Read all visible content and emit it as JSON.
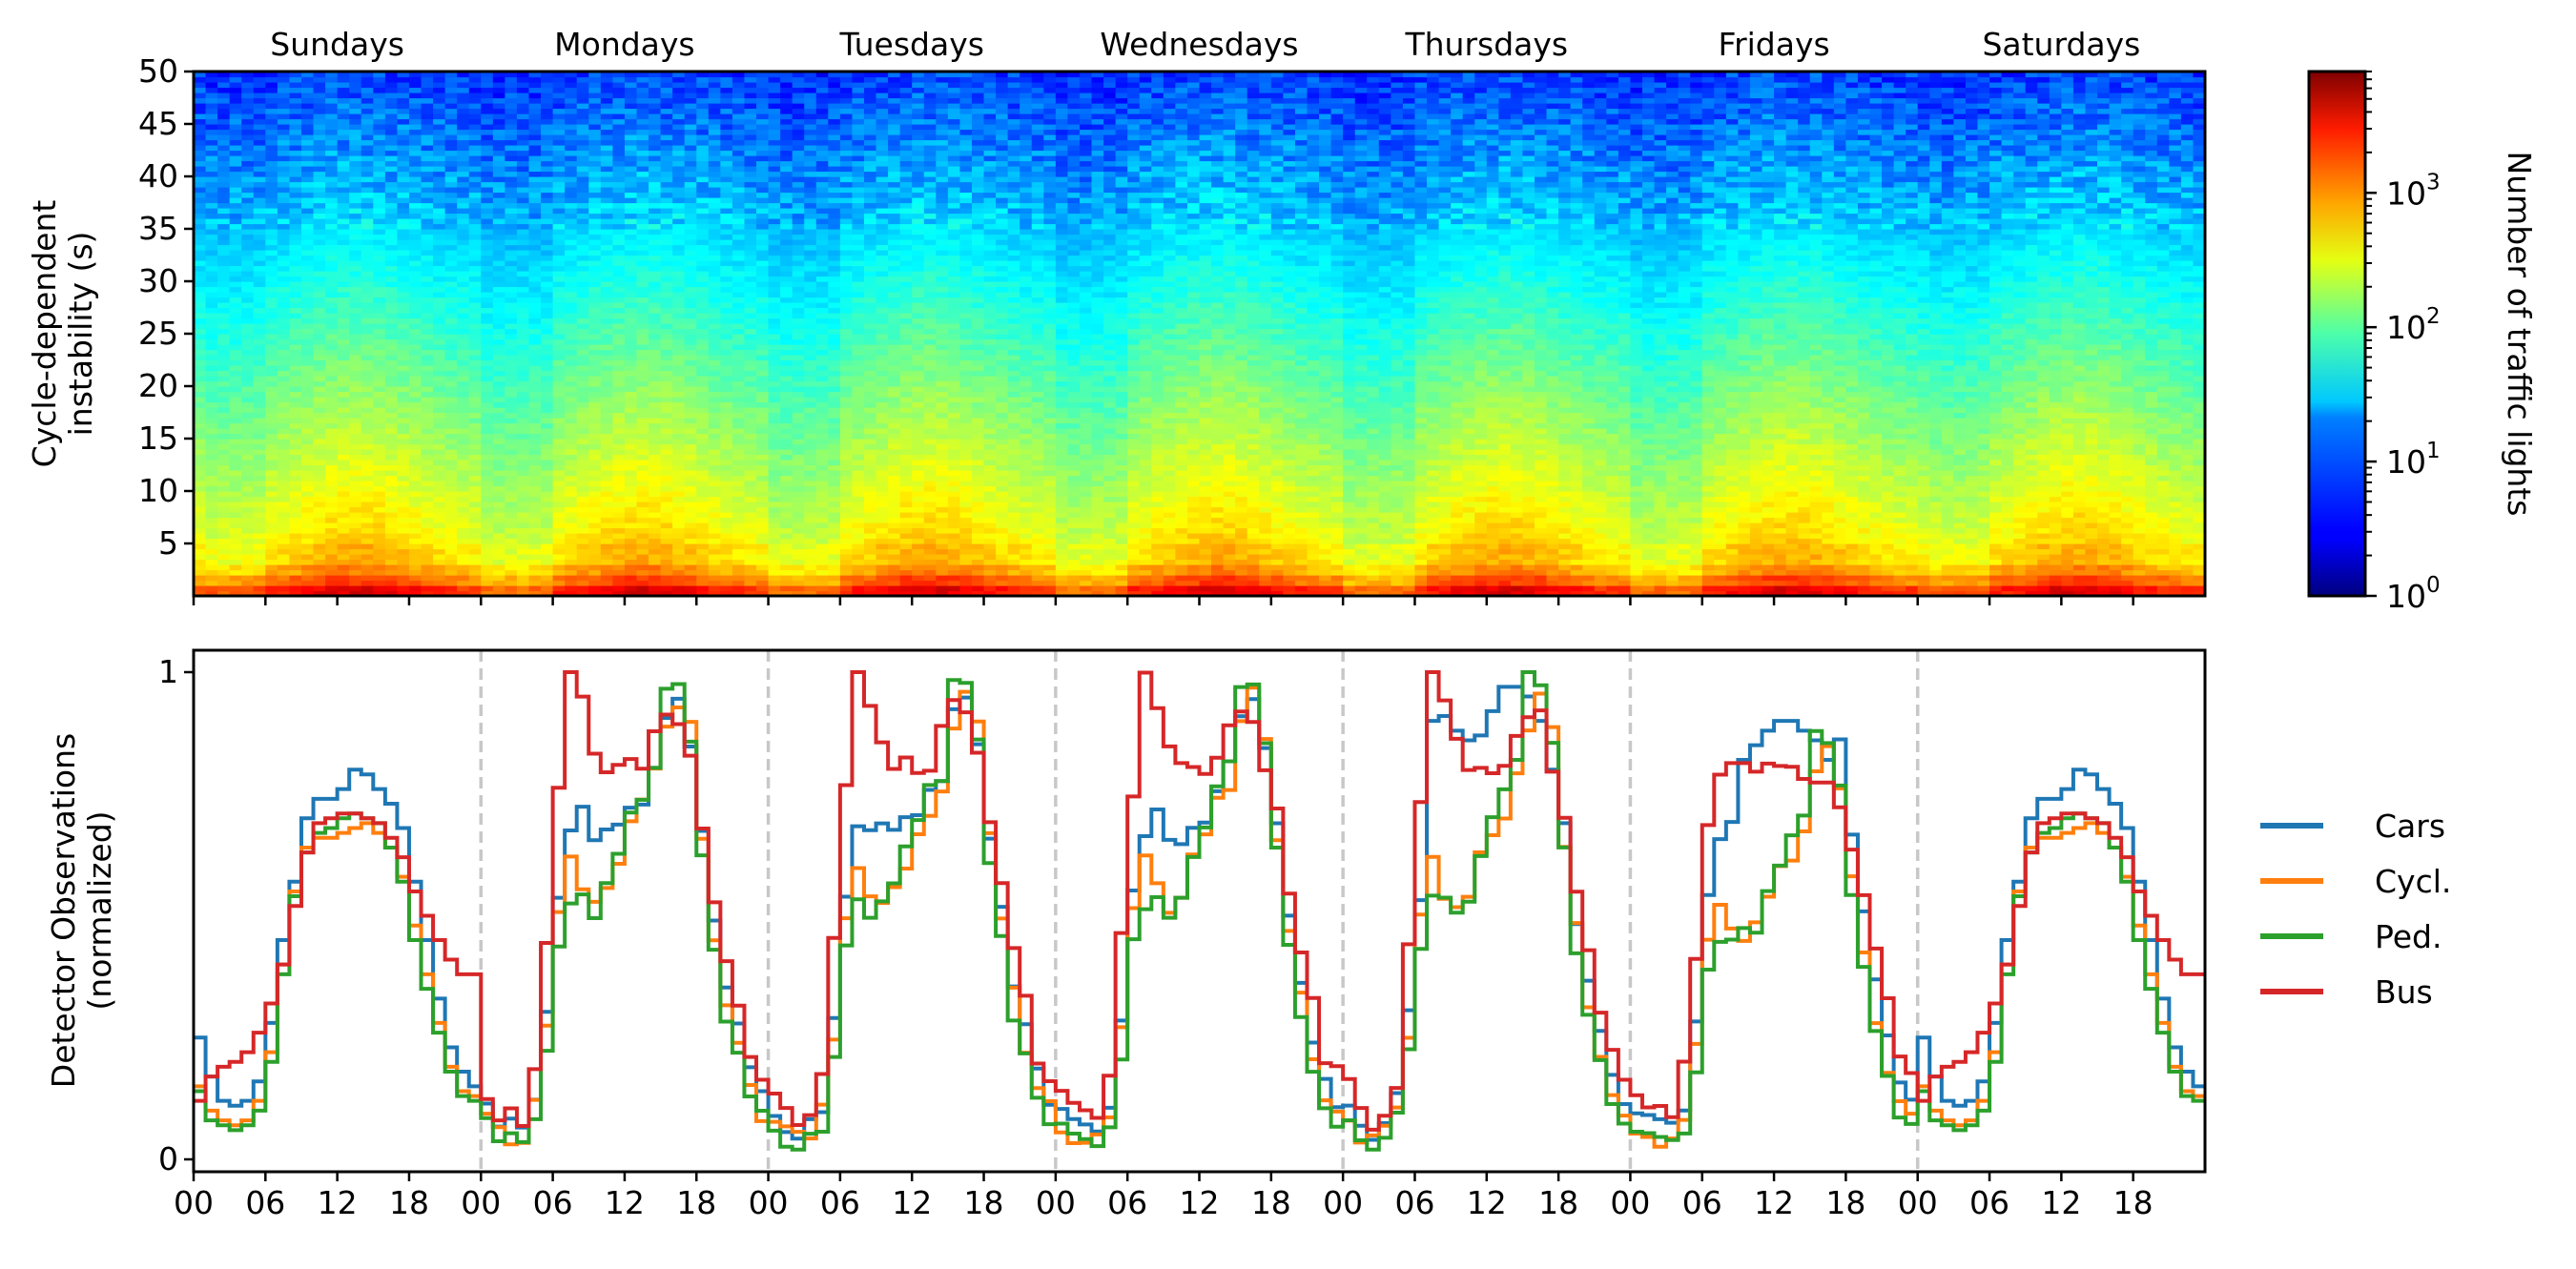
{
  "chart_data": [
    {
      "type": "heatmap",
      "ylabel_lines": [
        "Cycle-dependent",
        "instability (s)"
      ],
      "day_labels": [
        "Sundays",
        "Mondays",
        "Tuesdays",
        "Wednesdays",
        "Thursdays",
        "Fridays",
        "Saturdays"
      ],
      "y_ticks": [
        "5",
        "10",
        "15",
        "20",
        "25",
        "30",
        "35",
        "40",
        "45",
        "50"
      ],
      "ylim": [
        0,
        50
      ],
      "hours_per_day": 24,
      "days": 7,
      "colormap": "jet",
      "colorbar": {
        "label": "Number of traffic lights",
        "scale": "log",
        "ticks": [
          "10",
          "10",
          "10",
          "10"
        ],
        "tick_exponents": [
          "0",
          "1",
          "2",
          "3"
        ],
        "range": [
          1,
          8000
        ]
      },
      "notes": "Counts are highest at low instability (<5 s, ~1000-8000), decreasing towards 50 s (~1-10); dips in counts around 00-06 each night."
    },
    {
      "type": "line",
      "ylabel_lines": [
        "Detector Observations",
        "(normalized)"
      ],
      "x_ticks": [
        "00",
        "06",
        "12",
        "18"
      ],
      "y_ticks": [
        "0",
        "1"
      ],
      "ylim": [
        0,
        1
      ],
      "step": true,
      "day_separators": [
        "00",
        "00",
        "00",
        "00",
        "00",
        "00"
      ],
      "legend_position": "right",
      "colors": {
        "Cars": "#1f77b4",
        "Cycl.": "#ff7f0e",
        "Ped.": "#2ca02c",
        "Bus": "#d62728"
      },
      "series": [
        {
          "name": "Cars",
          "day_profile": [
            0.25,
            0.17,
            0.12,
            0.11,
            0.12,
            0.16,
            0.28,
            0.45,
            0.57,
            0.7,
            0.74,
            0.74,
            0.76,
            0.8,
            0.79,
            0.76,
            0.73,
            0.68,
            0.57,
            0.45,
            0.33,
            0.23,
            0.18,
            0.15
          ],
          "weekday_profile": [
            0.1,
            0.07,
            0.06,
            0.07,
            0.12,
            0.3,
            0.55,
            0.68,
            0.7,
            0.68,
            0.66,
            0.68,
            0.71,
            0.74,
            0.8,
            0.92,
            0.93,
            0.85,
            0.67,
            0.5,
            0.37,
            0.26,
            0.18,
            0.13
          ],
          "thursday_midday": [
            0.9,
            0.91,
            0.88,
            0.86,
            0.87,
            0.92,
            0.97,
            0.97,
            0.95,
            0.9,
            0.8
          ],
          "friday_midday": [
            0.82,
            0.85,
            0.88,
            0.9,
            0.9,
            0.88,
            0.86,
            0.82
          ]
        },
        {
          "name": "Cycl.",
          "day_profile": [
            0.15,
            0.1,
            0.08,
            0.07,
            0.08,
            0.12,
            0.22,
            0.4,
            0.55,
            0.64,
            0.66,
            0.66,
            0.67,
            0.68,
            0.69,
            0.67,
            0.64,
            0.58,
            0.48,
            0.38,
            0.28,
            0.19,
            0.14,
            0.13
          ],
          "weekday_profile": [
            0.08,
            0.05,
            0.04,
            0.05,
            0.1,
            0.25,
            0.5,
            0.6,
            0.55,
            0.52,
            0.55,
            0.62,
            0.68,
            0.72,
            0.78,
            0.9,
            0.95,
            0.88,
            0.66,
            0.47,
            0.33,
            0.22,
            0.14,
            0.1
          ],
          "midday_dip_min": 0.58
        },
        {
          "name": "Ped.",
          "day_profile": [
            0.14,
            0.08,
            0.07,
            0.06,
            0.07,
            0.1,
            0.2,
            0.38,
            0.54,
            0.63,
            0.67,
            0.68,
            0.7,
            0.71,
            0.7,
            0.69,
            0.64,
            0.57,
            0.45,
            0.35,
            0.26,
            0.18,
            0.13,
            0.12
          ],
          "weekday_profile": [
            0.07,
            0.04,
            0.03,
            0.04,
            0.08,
            0.22,
            0.45,
            0.53,
            0.52,
            0.52,
            0.55,
            0.62,
            0.7,
            0.75,
            0.8,
            0.98,
            0.96,
            0.86,
            0.62,
            0.44,
            0.3,
            0.2,
            0.12,
            0.09
          ],
          "midday_dip_min": 0.52
        },
        {
          "name": "Bus",
          "day_profile": [
            0.12,
            0.17,
            0.19,
            0.2,
            0.22,
            0.26,
            0.32,
            0.4,
            0.52,
            0.63,
            0.69,
            0.7,
            0.71,
            0.71,
            0.7,
            0.69,
            0.66,
            0.62,
            0.55,
            0.5,
            0.45,
            0.41,
            0.38,
            0.38
          ],
          "weekday_profile": [
            0.14,
            0.1,
            0.08,
            0.09,
            0.17,
            0.45,
            0.75,
            1.0,
            0.95,
            0.85,
            0.8,
            0.8,
            0.8,
            0.82,
            0.87,
            0.92,
            0.9,
            0.82,
            0.7,
            0.55,
            0.42,
            0.32,
            0.22,
            0.17
          ],
          "friday_profile": [
            0.14,
            0.1,
            0.1,
            0.11,
            0.18,
            0.4,
            0.68,
            0.78,
            0.8,
            0.8,
            0.79,
            0.79,
            0.79,
            0.79,
            0.78,
            0.78,
            0.76,
            0.72,
            0.62,
            0.52,
            0.42,
            0.32,
            0.22,
            0.17
          ]
        }
      ]
    }
  ]
}
